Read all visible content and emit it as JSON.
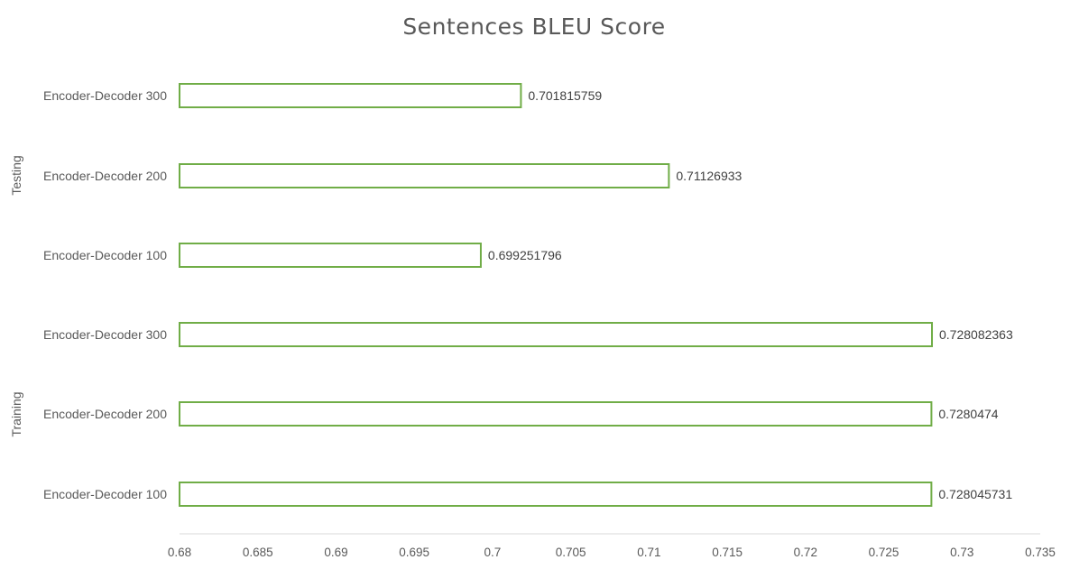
{
  "chart_data": {
    "type": "bar",
    "orientation": "horizontal",
    "title": "Sentences BLEU Score",
    "xlabel": "",
    "ylabel": "",
    "xlim": [
      0.68,
      0.735
    ],
    "ticks": [
      "0.68",
      "0.685",
      "0.69",
      "0.695",
      "0.7",
      "0.705",
      "0.71",
      "0.715",
      "0.72",
      "0.725",
      "0.73",
      "0.735"
    ],
    "tick_values": [
      0.68,
      0.685,
      0.69,
      0.695,
      0.7,
      0.705,
      0.71,
      0.715,
      0.72,
      0.725,
      0.73,
      0.735
    ],
    "grid": false,
    "legend": "none",
    "bar_fill": "#ffffff",
    "bar_outline": "#70ad47",
    "groups": [
      {
        "name": "Testing",
        "categories": [
          "Encoder-Decoder 300",
          "Encoder-Decoder 200",
          "Encoder-Decoder 100"
        ],
        "values": [
          0.701815759,
          0.71126933,
          0.699251796
        ],
        "value_labels": [
          "0.701815759",
          "0.71126933",
          "0.699251796"
        ]
      },
      {
        "name": "Training",
        "categories": [
          "Encoder-Decoder 300",
          "Encoder-Decoder 200",
          "Encoder-Decoder 100"
        ],
        "values": [
          0.728082363,
          0.7280474,
          0.728045731
        ],
        "value_labels": [
          "0.728082363",
          "0.7280474",
          "0.728045731"
        ]
      }
    ]
  }
}
